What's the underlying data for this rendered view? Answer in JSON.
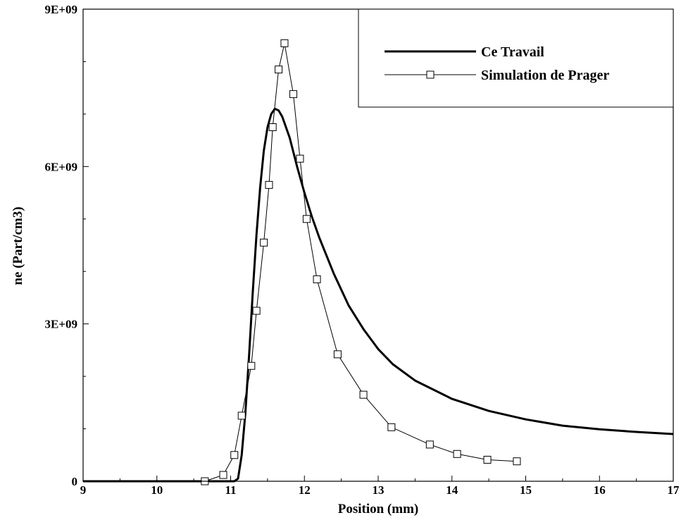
{
  "chart_data": {
    "type": "line",
    "title": "",
    "xlabel": "Position (mm)",
    "ylabel": "ne (Part/cm3)",
    "xlim": [
      9,
      17
    ],
    "ylim": [
      0,
      9000000000
    ],
    "grid": false,
    "legend_position": "top-right",
    "x_ticks": [
      {
        "value": 9,
        "label": "9"
      },
      {
        "value": 10,
        "label": "10"
      },
      {
        "value": 11,
        "label": "11"
      },
      {
        "value": 12,
        "label": "12"
      },
      {
        "value": 13,
        "label": "13"
      },
      {
        "value": 14,
        "label": "14"
      },
      {
        "value": 15,
        "label": "15"
      },
      {
        "value": 16,
        "label": "16"
      },
      {
        "value": 17,
        "label": "17"
      }
    ],
    "y_ticks": [
      {
        "value": 0,
        "label": "0"
      },
      {
        "value": 3000000000,
        "label": "3E+09"
      },
      {
        "value": 6000000000,
        "label": "6E+09"
      },
      {
        "value": 9000000000,
        "label": "9E+09"
      }
    ],
    "series": [
      {
        "name": "Ce Travail",
        "style": "thick-line",
        "color": "#000000",
        "points": [
          [
            9.0,
            0
          ],
          [
            10.0,
            0
          ],
          [
            11.05,
            0
          ],
          [
            11.1,
            50000000
          ],
          [
            11.15,
            500000000
          ],
          [
            11.2,
            1300000000
          ],
          [
            11.25,
            2400000000
          ],
          [
            11.3,
            3600000000
          ],
          [
            11.35,
            4700000000
          ],
          [
            11.4,
            5600000000
          ],
          [
            11.45,
            6300000000
          ],
          [
            11.5,
            6750000000
          ],
          [
            11.55,
            7000000000
          ],
          [
            11.6,
            7100000000
          ],
          [
            11.65,
            7070000000
          ],
          [
            11.7,
            6950000000
          ],
          [
            11.8,
            6550000000
          ],
          [
            11.9,
            6000000000
          ],
          [
            12.0,
            5500000000
          ],
          [
            12.1,
            5050000000
          ],
          [
            12.2,
            4650000000
          ],
          [
            12.4,
            3950000000
          ],
          [
            12.6,
            3350000000
          ],
          [
            12.8,
            2900000000
          ],
          [
            13.0,
            2520000000
          ],
          [
            13.2,
            2230000000
          ],
          [
            13.5,
            1920000000
          ],
          [
            14.0,
            1570000000
          ],
          [
            14.5,
            1340000000
          ],
          [
            15.0,
            1180000000
          ],
          [
            15.5,
            1060000000
          ],
          [
            16.0,
            990000000
          ],
          [
            16.5,
            940000000
          ],
          [
            17.0,
            900000000
          ]
        ]
      },
      {
        "name": "Simulation de Prager",
        "style": "thin-line-square-markers",
        "color": "#000000",
        "points": [
          [
            10.65,
            0
          ],
          [
            10.9,
            120000000
          ],
          [
            11.05,
            500000000
          ],
          [
            11.15,
            1250000000
          ],
          [
            11.28,
            2200000000
          ],
          [
            11.35,
            3250000000
          ],
          [
            11.45,
            4550000000
          ],
          [
            11.52,
            5650000000
          ],
          [
            11.57,
            6750000000
          ],
          [
            11.65,
            7850000000
          ],
          [
            11.73,
            8350000000
          ],
          [
            11.85,
            7380000000
          ],
          [
            11.94,
            6150000000
          ],
          [
            12.03,
            5000000000
          ],
          [
            12.17,
            3850000000
          ],
          [
            12.45,
            2420000000
          ],
          [
            12.8,
            1650000000
          ],
          [
            13.18,
            1030000000
          ],
          [
            13.7,
            700000000
          ],
          [
            14.07,
            520000000
          ],
          [
            14.48,
            410000000
          ],
          [
            14.88,
            380000000
          ]
        ]
      }
    ]
  }
}
